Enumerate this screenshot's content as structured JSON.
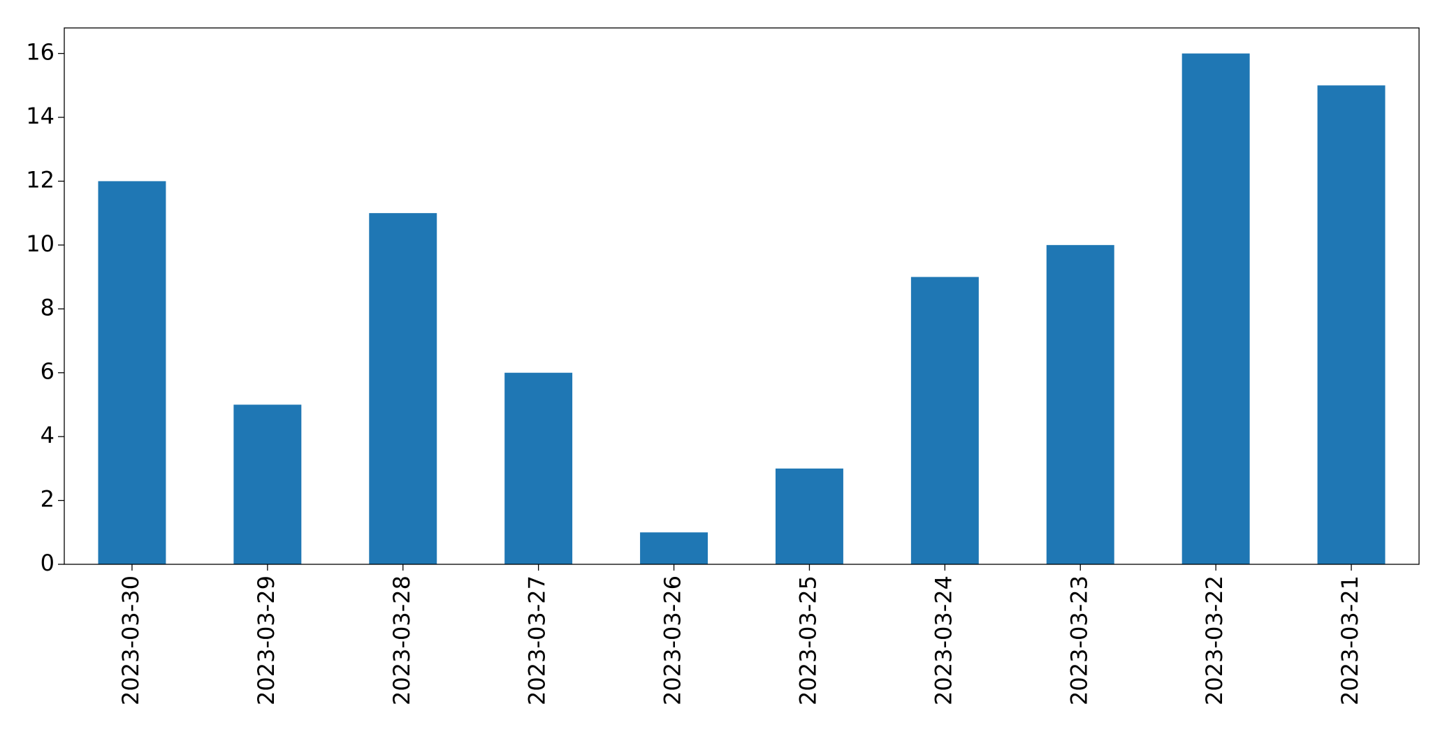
{
  "chart_data": {
    "type": "bar",
    "categories": [
      "2023-03-30",
      "2023-03-29",
      "2023-03-28",
      "2023-03-27",
      "2023-03-26",
      "2023-03-25",
      "2023-03-24",
      "2023-03-23",
      "2023-03-22",
      "2023-03-21"
    ],
    "values": [
      12,
      5,
      11,
      6,
      1,
      3,
      9,
      10,
      16,
      15
    ],
    "color": "#1f77b4",
    "ylim": [
      0,
      16.8
    ],
    "yticks": [
      0,
      2,
      4,
      6,
      8,
      10,
      12,
      14,
      16
    ],
    "grid": false
  }
}
